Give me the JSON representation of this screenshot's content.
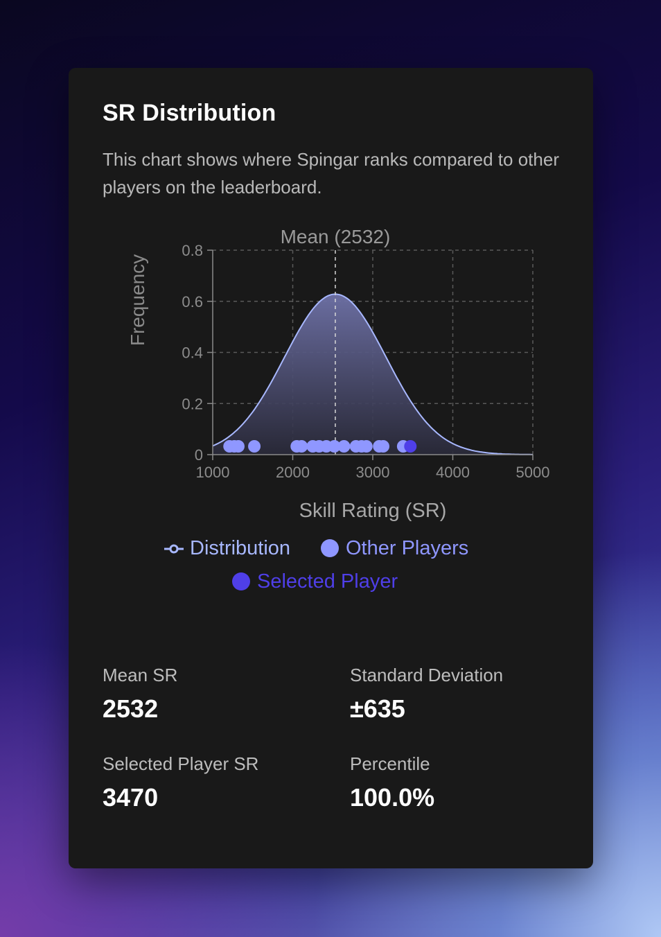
{
  "card": {
    "title": "SR Distribution",
    "description": "This chart shows where Spingar ranks compared to other players on the leaderboard."
  },
  "chart_data": {
    "type": "line",
    "xlabel": "Skill Rating (SR)",
    "ylabel": "Frequency",
    "xlim": [
      1000,
      5000
    ],
    "ylim": [
      0,
      0.8
    ],
    "xticks": [
      "1000",
      "2000",
      "3000",
      "4000",
      "5000"
    ],
    "yticks": [
      "0",
      "0.2",
      "0.4",
      "0.6",
      "0.8"
    ],
    "grid": true,
    "mean_line": {
      "x": 2532,
      "label": "Mean (2532)"
    },
    "distribution": {
      "name": "Distribution",
      "mean": 2532,
      "std": 635,
      "peak": 0.628,
      "color": "#a8b8ff"
    },
    "other_players": {
      "name": "Other Players",
      "color": "#8f97ff",
      "x": [
        1210,
        1270,
        1320,
        1520,
        2050,
        2110,
        2250,
        2330,
        2420,
        2520,
        2640,
        2790,
        2860,
        2920,
        3080,
        3130,
        3380
      ]
    },
    "selected_player": {
      "name": "Selected Player",
      "color": "#4f3fe8",
      "x": 3470
    },
    "legend": [
      "Distribution",
      "Other Players",
      "Selected Player"
    ],
    "legend_position": "bottom"
  },
  "stats": [
    {
      "label": "Mean SR",
      "value": "2532"
    },
    {
      "label": "Standard Deviation",
      "value": "±635"
    },
    {
      "label": "Selected Player SR",
      "value": "3470"
    },
    {
      "label": "Percentile",
      "value": "100.0%"
    }
  ]
}
